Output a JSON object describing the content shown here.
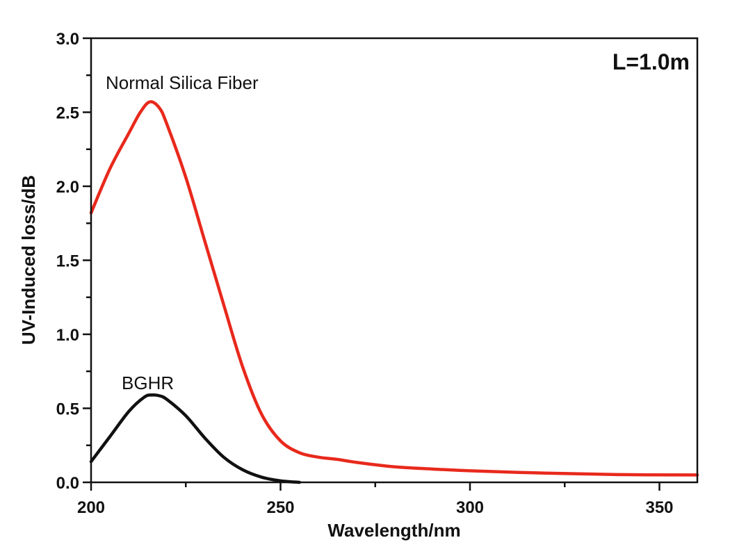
{
  "chart_data": {
    "type": "line",
    "title": "",
    "xlabel": "Wavelength/nm",
    "ylabel": "UV-Induced loss/dB",
    "xlim": [
      200,
      360
    ],
    "ylim": [
      0,
      3.0
    ],
    "xticks": [
      200,
      250,
      300,
      350
    ],
    "xtick_labels": [
      "200",
      "250",
      "300",
      "350"
    ],
    "yticks": [
      0,
      0.5,
      1.0,
      1.5,
      2.0,
      2.5,
      3.0
    ],
    "ytick_labels": [
      "0.0",
      "0.5",
      "1.0",
      "1.5",
      "2.0",
      "2.5",
      "3.0"
    ],
    "grid": false,
    "corner_label": "L=1.0m",
    "series": [
      {
        "name": "Normal Silica Fiber",
        "color": "#e8291c",
        "x": [
          200,
          205,
          210,
          213,
          215.5,
          218,
          220,
          225,
          230,
          235,
          240,
          245,
          250,
          255,
          260,
          265,
          270,
          280,
          290,
          300,
          320,
          340,
          360
        ],
        "y": [
          1.82,
          2.12,
          2.36,
          2.5,
          2.57,
          2.53,
          2.42,
          2.06,
          1.63,
          1.2,
          0.78,
          0.46,
          0.28,
          0.2,
          0.17,
          0.155,
          0.135,
          0.105,
          0.09,
          0.078,
          0.062,
          0.052,
          0.05
        ]
      },
      {
        "name": "BGHR",
        "color": "#111111",
        "x": [
          200,
          205,
          210,
          214,
          216,
          218,
          220,
          225,
          230,
          235,
          240,
          245,
          250,
          255
        ],
        "y": [
          0.14,
          0.31,
          0.48,
          0.575,
          0.59,
          0.585,
          0.56,
          0.45,
          0.3,
          0.17,
          0.085,
          0.035,
          0.01,
          0.0
        ]
      }
    ]
  }
}
